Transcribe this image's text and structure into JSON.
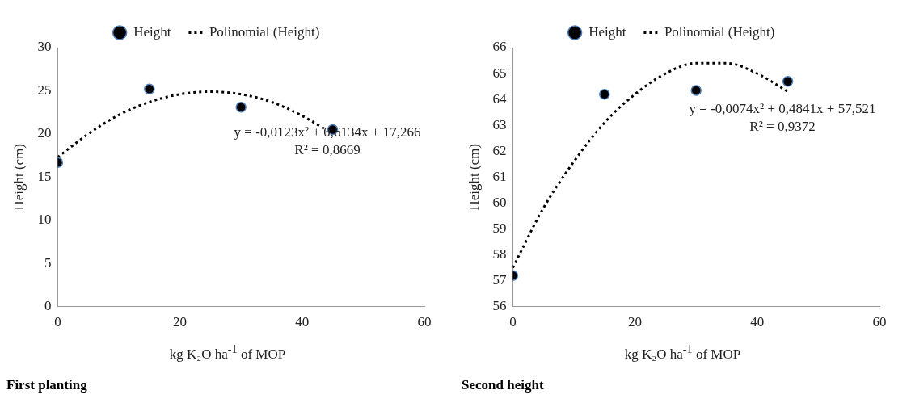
{
  "chart_data": [
    {
      "type": "scatter",
      "xlabel": "kg K₂O ha$^{-1}$ of MOP",
      "ylabel": "Height (cm)",
      "x": [
        0,
        15,
        30,
        45
      ],
      "xlim": [
        0,
        60
      ],
      "xticks": [
        0,
        20,
        40,
        60
      ],
      "ylim": [
        0,
        30
      ],
      "yticks": [
        0,
        5,
        10,
        15,
        20,
        25,
        30
      ],
      "grid": false,
      "legend": "top",
      "marker": "circle",
      "series": [
        {
          "name": "Height",
          "color": "#000000",
          "values": [
            16.7,
            25.2,
            23.1,
            20.5
          ]
        },
        {
          "name": "Polinomial (Height)",
          "type": "line",
          "line_style": "dotted",
          "marker": "none",
          "color": "#000000",
          "x": [
            0,
            5,
            10,
            15,
            20,
            25,
            30,
            35,
            40,
            45
          ],
          "values": [
            17.3,
            20.0,
            22.2,
            23.7,
            24.6,
            24.9,
            24.6,
            23.7,
            22.1,
            20.0
          ]
        }
      ],
      "annotations": [
        "y = -0,0123x² + 0,6134x + 17,266",
        "R² = 0,8669",
        "First planting"
      ]
    },
    {
      "type": "scatter",
      "xlabel": "kg K₂O ha$^{-1}$ of MOP",
      "ylabel": "Height (cm)",
      "x": [
        0,
        15,
        30,
        45
      ],
      "xlim": [
        0,
        60
      ],
      "xticks": [
        0,
        20,
        40,
        60
      ],
      "ylim": [
        56,
        66
      ],
      "yticks": [
        56,
        57,
        58,
        59,
        60,
        61,
        62,
        63,
        64,
        65,
        66
      ],
      "grid": false,
      "legend": "top",
      "marker": "circle",
      "series": [
        {
          "name": "Height",
          "color": "#000000",
          "values": [
            57.2,
            64.2,
            64.35,
            64.7
          ]
        },
        {
          "name": "Polinomial (Height)",
          "type": "line",
          "line_style": "dotted",
          "marker": "none",
          "color": "#000000",
          "x": [
            0,
            5,
            10,
            15,
            20,
            25,
            30,
            35,
            40,
            45
          ],
          "values": [
            57.5,
            59.8,
            61.6,
            63.1,
            64.2,
            65.0,
            65.4,
            65.4,
            65.0,
            64.3
          ]
        }
      ],
      "annotations": [
        "y = -0,0074x² + 0,4841x + 57,521",
        "R² = 0,9372",
        "Second height"
      ]
    }
  ]
}
